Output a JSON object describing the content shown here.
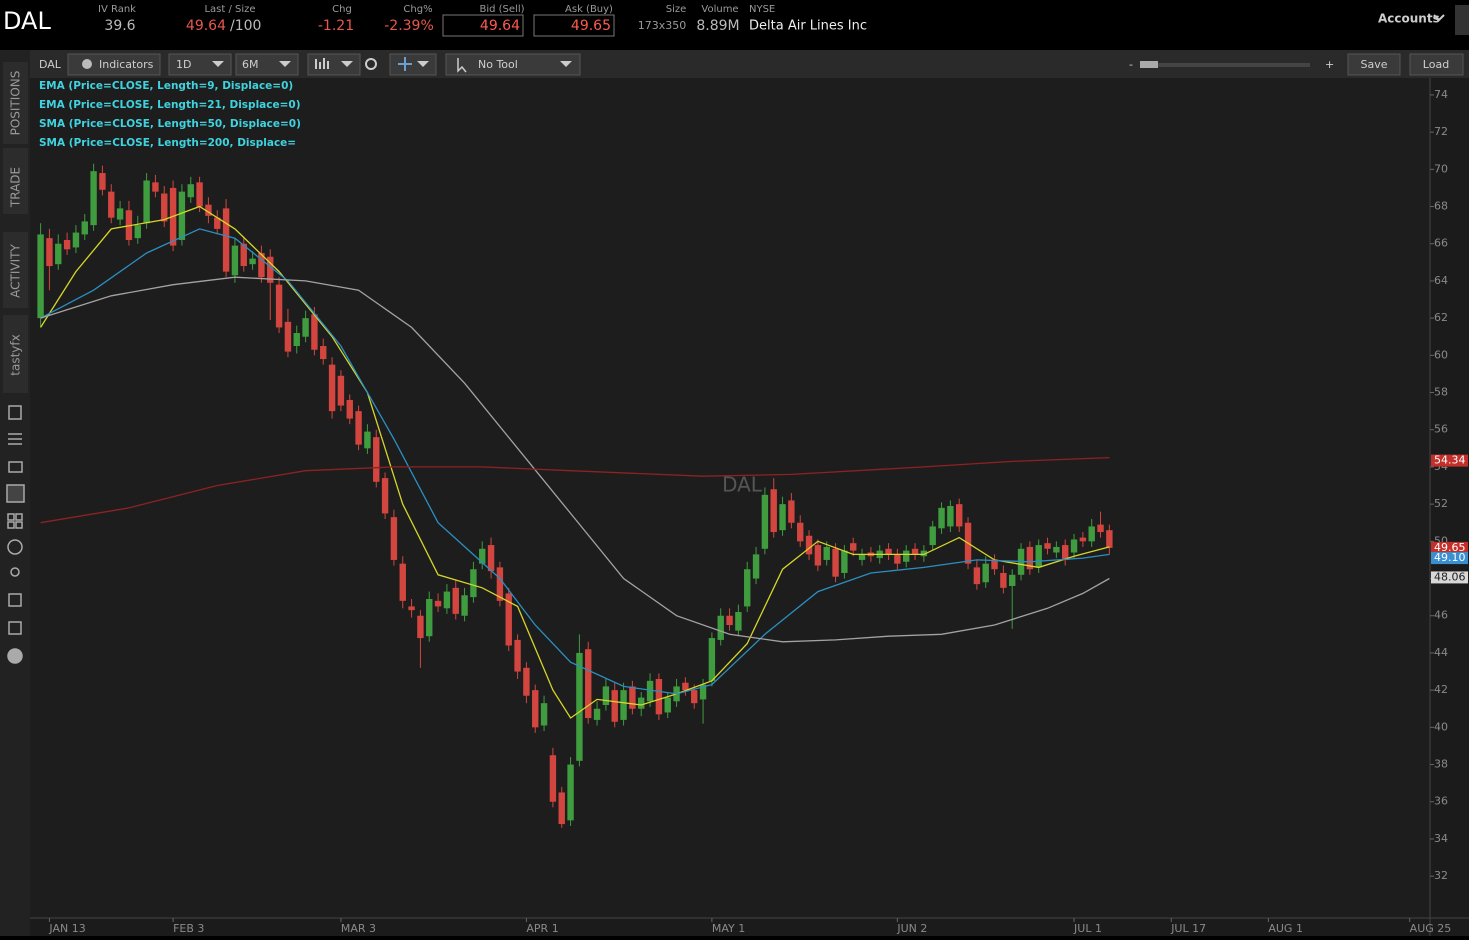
{
  "header": {
    "symbol": "DAL",
    "iv_rank": {
      "label": "IV Rank",
      "value": "39.6"
    },
    "last": {
      "label": "Last / Size",
      "value": "49.64",
      "size": "/100"
    },
    "chg": {
      "label": "Chg",
      "value": "-1.21"
    },
    "chg_pct": {
      "label": "Chg%",
      "value": "-2.39%"
    },
    "bid": {
      "label": "Bid (Sell)",
      "value": "49.64"
    },
    "ask": {
      "label": "Ask (Buy)",
      "value": "49.65"
    },
    "size": {
      "label": "Size",
      "value": "173x350"
    },
    "volume": {
      "label": "Volume",
      "value": "8.89M"
    },
    "exchange": "NYSE",
    "company": "Delta Air Lines Inc",
    "accounts": "Accounts"
  },
  "toolbar": {
    "symbol": "DAL",
    "indicators": "Indicators",
    "aggregation": "1D",
    "range": "6M",
    "tool": "No Tool",
    "zoom_out": "-",
    "zoom_in": "+",
    "save": "Save",
    "load": "Load"
  },
  "sidebar_tabs": [
    "POSITIONS",
    "TRADE",
    "ACTIVITY",
    "tastyfx"
  ],
  "chart_data": {
    "type": "candlestick",
    "watermark": "DAL",
    "up_color": "#3f9c3f",
    "down_color": "#d2463f",
    "xlim": [
      -1.2,
      157.3
    ],
    "ylim": [
      29.75,
      74.91
    ],
    "xticks": [
      {
        "value": 1,
        "label": "JAN 13"
      },
      {
        "value": 15,
        "label": "FEB 3"
      },
      {
        "value": 34,
        "label": "MAR 3"
      },
      {
        "value": 55,
        "label": "APR 1"
      },
      {
        "value": 76,
        "label": "MAY 1"
      },
      {
        "value": 97,
        "label": "JUN 2"
      },
      {
        "value": 117,
        "label": "JUL 1"
      },
      {
        "value": 128,
        "label": "JUL 17"
      },
      {
        "value": 139,
        "label": "AUG 1"
      },
      {
        "value": 155,
        "label": "AUG 25"
      }
    ],
    "yticks": [
      32,
      34,
      36,
      38,
      40,
      42,
      44,
      46,
      48,
      50,
      52,
      54,
      56,
      58,
      60,
      62,
      64,
      66,
      68,
      70,
      72,
      74
    ],
    "open": [
      62.0,
      66.3,
      64.9,
      66.2,
      65.8,
      66.5,
      67.0,
      69.8,
      68.8,
      67.3,
      67.8,
      66.3,
      67.1,
      69.3,
      68.7,
      69.0,
      66.2,
      68.5,
      69.3,
      68.1,
      67.4,
      67.9,
      64.3,
      66.0,
      64.9,
      65.5,
      65.3,
      63.8,
      61.8,
      60.5,
      61.0,
      62.2,
      60.5,
      59.5,
      58.9,
      57.6,
      57.0,
      55.0,
      55.6,
      53.4,
      51.3,
      48.8,
      46.5,
      46.0,
      44.9,
      46.8,
      46.4,
      47.5,
      46.0,
      47.0,
      48.8,
      49.8,
      48.6,
      47.2,
      44.7,
      43.2,
      42.0,
      40.1,
      38.5,
      36.5,
      35.0,
      38.2,
      44.2,
      40.4,
      41.2,
      42.0,
      40.4,
      42.2,
      41.0,
      41.4,
      42.6,
      40.8,
      41.4,
      42.4,
      42.0,
      41.5,
      42.5,
      44.7,
      46.0,
      45.2,
      46.5,
      48.0,
      49.6,
      52.8,
      50.6,
      52.2,
      51.0,
      50.3,
      49.8,
      49.0,
      49.6,
      48.3,
      49.9,
      49.0,
      49.4,
      49.1,
      49.6,
      49.3,
      48.9,
      49.6,
      49.2,
      49.8,
      50.7,
      50.8,
      52.0,
      51.0,
      48.6,
      47.8,
      49.0,
      48.3,
      47.6,
      48.2,
      49.7,
      48.6,
      49.9,
      49.4,
      49.8,
      49.4,
      50.2,
      50.0,
      50.9,
      50.6
    ],
    "high": [
      67.1,
      66.8,
      66.5,
      66.6,
      67.0,
      67.6,
      70.3,
      70.2,
      69.2,
      68.3,
      68.3,
      67.5,
      69.8,
      69.7,
      69.1,
      69.4,
      69.2,
      69.6,
      69.6,
      68.5,
      67.8,
      68.4,
      66.3,
      66.4,
      65.6,
      65.9,
      65.7,
      64.2,
      62.5,
      61.6,
      62.4,
      62.6,
      60.9,
      59.9,
      59.2,
      57.9,
      57.3,
      56.3,
      56.0,
      53.7,
      51.7,
      49.2,
      46.9,
      46.3,
      47.3,
      47.2,
      47.7,
      47.9,
      47.5,
      48.9,
      50.0,
      50.2,
      48.9,
      47.5,
      45.0,
      43.5,
      42.3,
      41.7,
      38.9,
      36.8,
      38.4,
      45.0,
      44.6,
      41.4,
      42.6,
      42.4,
      42.4,
      42.5,
      41.9,
      42.9,
      42.9,
      41.9,
      42.6,
      42.7,
      42.3,
      42.6,
      45.1,
      46.4,
      46.4,
      46.6,
      48.9,
      49.7,
      52.9,
      53.4,
      52.4,
      52.6,
      51.4,
      50.6,
      50.1,
      50.0,
      49.9,
      49.8,
      50.2,
      49.6,
      49.7,
      49.8,
      49.9,
      49.6,
      49.8,
      49.9,
      49.8,
      51.1,
      52.1,
      52.2,
      52.3,
      51.3,
      49.0,
      49.2,
      49.3,
      48.7,
      48.5,
      49.9,
      50.0,
      50.1,
      50.2,
      50.0,
      50.1,
      50.4,
      50.5,
      51.2,
      51.6,
      50.9
    ],
    "low": [
      61.5,
      63.5,
      64.6,
      65.4,
      65.5,
      66.2,
      66.7,
      68.6,
      67.1,
      67.0,
      65.9,
      66.0,
      66.8,
      68.5,
      66.9,
      65.6,
      65.9,
      68.2,
      67.7,
      67.1,
      66.5,
      64.2,
      63.9,
      64.5,
      64.6,
      63.9,
      61.9,
      61.2,
      59.9,
      60.1,
      60.7,
      60.0,
      59.5,
      56.6,
      57.0,
      56.3,
      54.9,
      54.7,
      52.9,
      51.2,
      48.7,
      46.4,
      45.9,
      43.2,
      44.6,
      46.2,
      46.1,
      45.8,
      45.7,
      46.7,
      48.5,
      48.0,
      46.5,
      44.1,
      42.6,
      41.3,
      39.7,
      39.8,
      35.7,
      34.6,
      34.7,
      37.9,
      40.2,
      40.1,
      40.9,
      40.0,
      40.1,
      40.7,
      40.6,
      41.1,
      40.4,
      40.5,
      41.1,
      41.7,
      41.0,
      40.2,
      42.2,
      44.4,
      45.2,
      44.9,
      46.2,
      47.7,
      49.3,
      50.2,
      50.3,
      50.7,
      49.7,
      49.0,
      48.4,
      48.7,
      47.8,
      48.0,
      49.2,
      48.7,
      48.9,
      48.8,
      49.0,
      48.5,
      48.6,
      49.0,
      48.9,
      49.5,
      50.4,
      50.5,
      50.5,
      48.5,
      47.4,
      47.5,
      48.2,
      47.2,
      45.3,
      47.9,
      48.2,
      48.3,
      49.3,
      49.1,
      48.7,
      49.1,
      49.7,
      49.7,
      50.2,
      49.3
    ],
    "close": [
      66.5,
      64.8,
      66.0,
      65.7,
      66.6,
      67.2,
      69.9,
      68.9,
      67.4,
      67.9,
      66.2,
      67.0,
      69.4,
      68.8,
      67.2,
      65.9,
      68.8,
      69.2,
      68.0,
      67.5,
      66.8,
      64.5,
      65.9,
      64.8,
      65.2,
      64.2,
      63.9,
      61.5,
      60.2,
      61.2,
      62.0,
      60.3,
      59.8,
      57.0,
      57.3,
      56.6,
      55.2,
      55.9,
      53.2,
      51.5,
      49.0,
      46.8,
      46.3,
      44.8,
      46.9,
      46.5,
      47.3,
      46.1,
      47.1,
      48.5,
      49.6,
      48.4,
      46.8,
      44.4,
      43.0,
      41.7,
      40.0,
      41.3,
      36.0,
      34.8,
      38.0,
      44.0,
      40.5,
      41.0,
      42.2,
      40.3,
      42.0,
      41.0,
      41.6,
      42.5,
      40.7,
      41.6,
      42.2,
      42.0,
      41.3,
      42.3,
      44.8,
      46.0,
      45.5,
      46.2,
      48.5,
      49.3,
      52.5,
      50.5,
      52.0,
      51.0,
      50.0,
      49.3,
      48.7,
      49.7,
      48.1,
      49.5,
      49.5,
      49.3,
      49.2,
      49.5,
      49.3,
      48.8,
      49.5,
      49.3,
      49.5,
      50.8,
      51.8,
      51.9,
      50.8,
      48.8,
      47.7,
      48.8,
      48.5,
      47.5,
      48.2,
      49.6,
      48.5,
      49.8,
      49.6,
      49.7,
      49.0,
      50.1,
      50.0,
      50.8,
      50.5,
      49.65
    ],
    "lines": [
      {
        "name": "EMA (Price=CLOSE, Length=9, Displace=0)",
        "color": "#d6d629",
        "x": [
          0,
          4,
          8,
          14,
          18,
          22,
          27,
          33,
          37,
          41,
          45,
          50,
          54,
          58,
          60,
          63,
          68,
          72,
          76,
          80,
          84,
          88,
          92,
          100,
          104,
          108,
          113,
          117,
          121
        ],
        "values": [
          61.5,
          64.5,
          66.8,
          67.3,
          68.0,
          66.8,
          64.5,
          61.0,
          58.0,
          52.0,
          48.2,
          47.5,
          46.5,
          42.0,
          40.5,
          41.5,
          41.2,
          41.8,
          42.5,
          44.5,
          48.5,
          50.0,
          49.3,
          49.3,
          50.2,
          49.0,
          48.6,
          49.2,
          49.7
        ]
      },
      {
        "name": "EMA (Price=CLOSE, Length=21, Displace=0)",
        "color": "#2b8fc2",
        "x": [
          0,
          6,
          12,
          18,
          22,
          28,
          34,
          40,
          45,
          52,
          56,
          60,
          66,
          72,
          76,
          82,
          88,
          94,
          100,
          106,
          112,
          118,
          121
        ],
        "values": [
          62.0,
          63.5,
          65.5,
          66.8,
          66.3,
          64.0,
          60.5,
          55.5,
          51.0,
          48.0,
          45.5,
          43.5,
          42.2,
          41.8,
          42.3,
          45.0,
          47.3,
          48.3,
          48.6,
          49.0,
          48.9,
          49.1,
          49.3
        ]
      },
      {
        "name": "SMA (Price=CLOSE, Length=50, Displace=0)",
        "color": "#a3a3a3",
        "x": [
          0,
          8,
          15,
          22,
          30,
          36,
          42,
          48,
          54,
          60,
          66,
          72,
          78,
          84,
          90,
          96,
          102,
          108,
          114,
          118,
          121
        ],
        "values": [
          62.0,
          63.2,
          63.8,
          64.2,
          64.0,
          63.5,
          61.5,
          58.5,
          55.0,
          51.5,
          48.0,
          46.0,
          45.0,
          44.6,
          44.7,
          44.9,
          45.0,
          45.5,
          46.4,
          47.2,
          48.0
        ]
      },
      {
        "name": "SMA (Price=CLOSE, Length=200, Displace=",
        "color": "#8e2222",
        "x": [
          0,
          10,
          20,
          30,
          40,
          50,
          60,
          75,
          85,
          100,
          110,
          121
        ],
        "values": [
          51.0,
          51.8,
          53.0,
          53.8,
          54.0,
          54.0,
          53.8,
          53.5,
          53.6,
          54.0,
          54.3,
          54.5
        ]
      }
    ],
    "price_labels": [
      {
        "value": 54.34,
        "color": "#c3302b"
      },
      {
        "value": 49.65,
        "color": "#c3302b"
      },
      {
        "value": {
          "value": 49.1,
          "label": "49.10"
        },
        "color": "#3a8fd0"
      },
      {
        "value": 48.06,
        "color": "#d8d8d8"
      }
    ]
  }
}
